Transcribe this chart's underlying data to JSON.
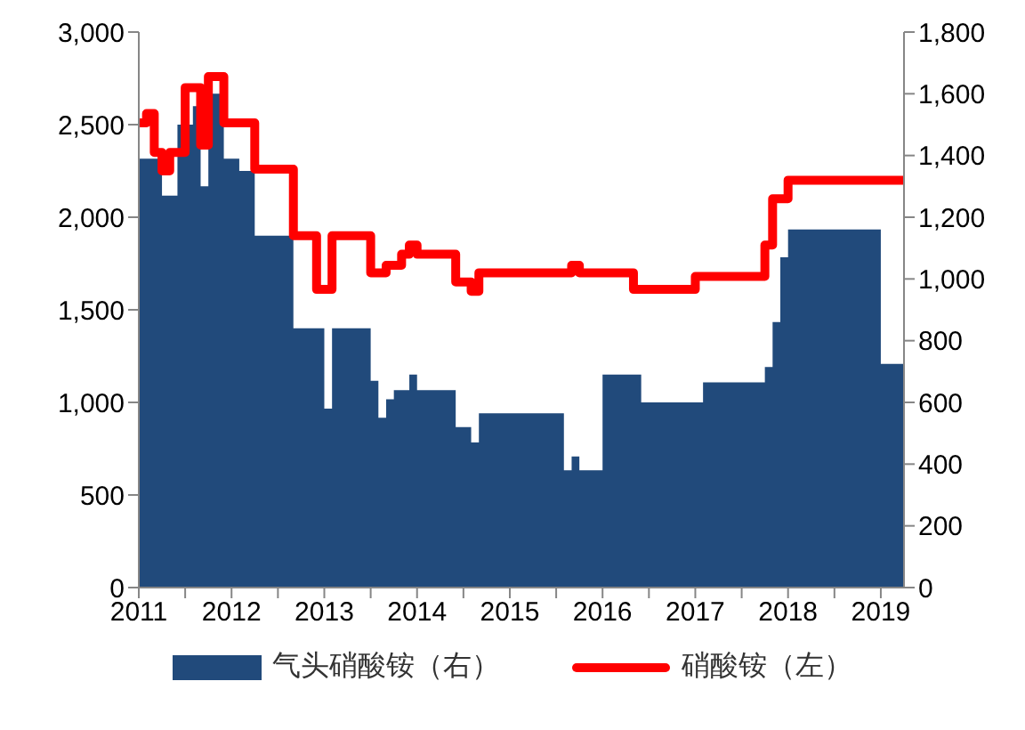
{
  "chart_data": {
    "type": "step",
    "xlim": [
      "2011-01",
      "2019-04"
    ],
    "xticks": [
      "2011",
      {
        "value": "2011-07",
        "label": null
      },
      "2012",
      {
        "value": "2012-07",
        "label": null
      },
      "2013",
      {
        "value": "2013-07",
        "label": null
      },
      "2014",
      {
        "value": "2014-07",
        "label": null
      },
      "2015",
      {
        "value": "2015-07",
        "label": null
      },
      "2016",
      {
        "value": "2016-07",
        "label": null
      },
      "2017",
      {
        "value": "2017-07",
        "label": null
      },
      "2018",
      {
        "value": "2018-07",
        "label": null
      },
      "2019"
    ],
    "ylim": [
      0,
      3000
    ],
    "yticks": [
      {
        "value": 0,
        "label": "0"
      },
      {
        "value": 500,
        "label": "500"
      },
      {
        "value": 1000,
        "label": "1,000"
      },
      {
        "value": 1500,
        "label": "1,500"
      },
      {
        "value": 2000,
        "label": "2,000"
      },
      {
        "value": 2500,
        "label": "2,500"
      },
      {
        "value": 3000,
        "label": "3,000"
      }
    ],
    "y2lim": [
      0,
      1800
    ],
    "y2ticks": [
      {
        "value": 0,
        "label": "0"
      },
      {
        "value": 200,
        "label": "200"
      },
      {
        "value": 400,
        "label": "400"
      },
      {
        "value": 600,
        "label": "600"
      },
      {
        "value": 800,
        "label": "800"
      },
      {
        "value": 1000,
        "label": "1,000"
      },
      {
        "value": 1200,
        "label": "1,200"
      },
      {
        "value": 1400,
        "label": "1,400"
      },
      {
        "value": 1600,
        "label": "1,600"
      },
      {
        "value": 1800,
        "label": "1,800"
      }
    ],
    "legend": "bottom",
    "series": [
      {
        "name": "气头硝酸铵（右）",
        "type": "area",
        "axis": "y2",
        "color": "#214a7b",
        "x": [
          "2011-01",
          "2011-04",
          "2011-06",
          "2011-08",
          "2011-09",
          "2011-10",
          "2011-12",
          "2012-02",
          "2012-04",
          "2012-09",
          "2013-01",
          "2013-02",
          "2013-07",
          "2013-08",
          "2013-09",
          "2013-10",
          "2013-12",
          "2014-01",
          "2014-06",
          "2014-08",
          "2014-09",
          "2015-08",
          "2015-09",
          "2015-10",
          "2016-01",
          "2016-06",
          "2017-02",
          "2017-10",
          "2017-11",
          "2017-12",
          "2018-01",
          "2019-01",
          "2019-04"
        ],
        "values": [
          1390,
          1270,
          1500,
          1560,
          1300,
          1600,
          1390,
          1350,
          1140,
          840,
          580,
          840,
          670,
          550,
          610,
          640,
          690,
          640,
          520,
          470,
          565,
          380,
          425,
          380,
          690,
          600,
          665,
          715,
          860,
          1070,
          1160,
          725,
          725
        ]
      },
      {
        "name": "硝酸铵（左）",
        "color": "#ff0000",
        "x": [
          "2011-01",
          "2011-02",
          "2011-03",
          "2011-04",
          "2011-05",
          "2011-07",
          "2011-09",
          "2011-10",
          "2011-12",
          "2012-04",
          "2012-09",
          "2012-12",
          "2013-02",
          "2013-07",
          "2013-09",
          "2013-11",
          "2013-12",
          "2014-01",
          "2014-06",
          "2014-08",
          "2014-09",
          "2015-09",
          "2015-10",
          "2016-05",
          "2017-01",
          "2017-10",
          "2017-11",
          "2018-01",
          "2019-04"
        ],
        "values": [
          2510,
          2560,
          2350,
          2250,
          2350,
          2700,
          2390,
          2760,
          2510,
          2260,
          1900,
          1610,
          1900,
          1700,
          1740,
          1800,
          1850,
          1800,
          1650,
          1600,
          1700,
          1740,
          1700,
          1610,
          1680,
          1850,
          2100,
          2200,
          2200
        ]
      }
    ]
  }
}
